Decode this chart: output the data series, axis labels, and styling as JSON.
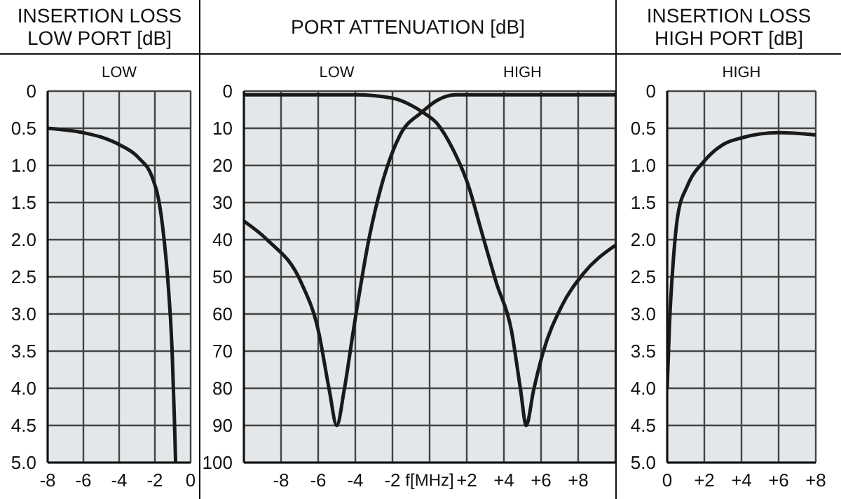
{
  "chart_data": [
    {
      "type": "line",
      "title": "INSERTION LOSS\nLOW PORT [dB]",
      "marker": "none",
      "line_style": "solid",
      "grid": true,
      "annotations": [
        "LOW"
      ],
      "xlim": [
        -8,
        0
      ],
      "xticks": [
        -8,
        -6,
        -4,
        -2,
        0
      ],
      "ylim": [
        5,
        0
      ],
      "yticks": [
        0,
        {
          "value": 0.5,
          "label": "0.5"
        },
        {
          "value": 1,
          "label": "1.0"
        },
        {
          "value": 1.5,
          "label": "1.5"
        },
        {
          "value": 2,
          "label": "2.0"
        },
        {
          "value": 2.5,
          "label": "2.5"
        },
        {
          "value": 3,
          "label": "3.0"
        },
        {
          "value": 3.5,
          "label": "3.5"
        },
        {
          "value": 4,
          "label": "4.0"
        },
        {
          "value": 4.5,
          "label": "4.5"
        },
        {
          "value": 5,
          "label": "5.0"
        }
      ],
      "series": [
        {
          "color": "#1a1a1a",
          "x": [
            -8,
            -6,
            -5,
            -4,
            -2.9,
            -2.15,
            -1.78,
            -1.53,
            -1.28,
            -1.04,
            -0.91,
            -0.84
          ],
          "values": [
            0.5,
            0.56,
            0.62,
            0.72,
            0.9,
            1.16,
            1.47,
            1.9,
            2.53,
            3.47,
            4.4,
            5.0
          ]
        }
      ]
    },
    {
      "type": "line",
      "title": "PORT ATTENUATION [dB]",
      "xlabel": "f[MHz]",
      "marker": "none",
      "line_style": "solid",
      "grid": true,
      "annotations": [
        "LOW",
        "HIGH"
      ],
      "xlim": [
        -10,
        10
      ],
      "xticks": [
        -8,
        -6,
        -4,
        -2,
        {
          "value": 0,
          "label": null
        },
        {
          "value": 2,
          "label": "+2"
        },
        {
          "value": 4,
          "label": "+4"
        },
        {
          "value": 6,
          "label": "+6"
        },
        {
          "value": 8,
          "label": "+8"
        }
      ],
      "ylim": [
        100,
        0
      ],
      "yticks": [
        0,
        10,
        20,
        30,
        40,
        50,
        60,
        70,
        80,
        90,
        100
      ],
      "series": [
        {
          "color": "#1a1a1a",
          "x": [
            -10,
            -4,
            -2,
            -1,
            -0.4,
            0.4,
            1.25,
            2.1,
            2.75,
            3.6,
            4.4,
            4.9,
            5.2,
            5.6,
            6.1,
            7.1,
            8.25,
            10
          ],
          "values": [
            1,
            1,
            1.9,
            3.8,
            5.6,
            8.7,
            15.6,
            25.6,
            37,
            51.7,
            64.3,
            80.5,
            90,
            80.5,
            70.5,
            58,
            49.3,
            41.5
          ]
        },
        {
          "color": "#1a1a1a",
          "x": [
            -10,
            -8.75,
            -6.9,
            -6,
            -5.4,
            -5,
            -4.6,
            -4.1,
            -3.25,
            -2.6,
            -1.6,
            -0.4,
            0.4,
            1.4,
            3.4,
            10
          ],
          "values": [
            35,
            40,
            51.7,
            64.3,
            80.5,
            90,
            80.5,
            64.3,
            39.4,
            25.6,
            11.9,
            5.6,
            2.5,
            1,
            1,
            1
          ]
        }
      ]
    },
    {
      "type": "line",
      "title": "INSERTION LOSS\nHIGH PORT [dB]",
      "marker": "none",
      "line_style": "solid",
      "grid": true,
      "annotations": [
        "HIGH"
      ],
      "xlim": [
        0,
        8
      ],
      "xticks": [
        0,
        {
          "value": 2,
          "label": "+2"
        },
        {
          "value": 4,
          "label": "+4"
        },
        {
          "value": 6,
          "label": "+6"
        },
        {
          "value": 8,
          "label": "+8"
        }
      ],
      "ylim": [
        5,
        0
      ],
      "yticks": [
        0,
        {
          "value": 0.5,
          "label": "0.5"
        },
        {
          "value": 1,
          "label": "1.0"
        },
        {
          "value": 1.5,
          "label": "1.5"
        },
        {
          "value": 2,
          "label": "2.0"
        },
        {
          "value": 2.5,
          "label": "2.5"
        },
        {
          "value": 3,
          "label": "3.0"
        },
        {
          "value": 3.5,
          "label": "3.5"
        },
        {
          "value": 4,
          "label": "4.0"
        },
        {
          "value": 4.5,
          "label": "4.5"
        },
        {
          "value": 5,
          "label": "5.0"
        }
      ],
      "series": [
        {
          "color": "#1a1a1a",
          "x": [
            0,
            0.12,
            0.33,
            0.58,
            1.08,
            2,
            3,
            4,
            6,
            8
          ],
          "values": [
            4.0,
            3.16,
            2.28,
            1.66,
            1.28,
            0.94,
            0.72,
            0.63,
            0.56,
            0.59
          ]
        }
      ]
    }
  ]
}
